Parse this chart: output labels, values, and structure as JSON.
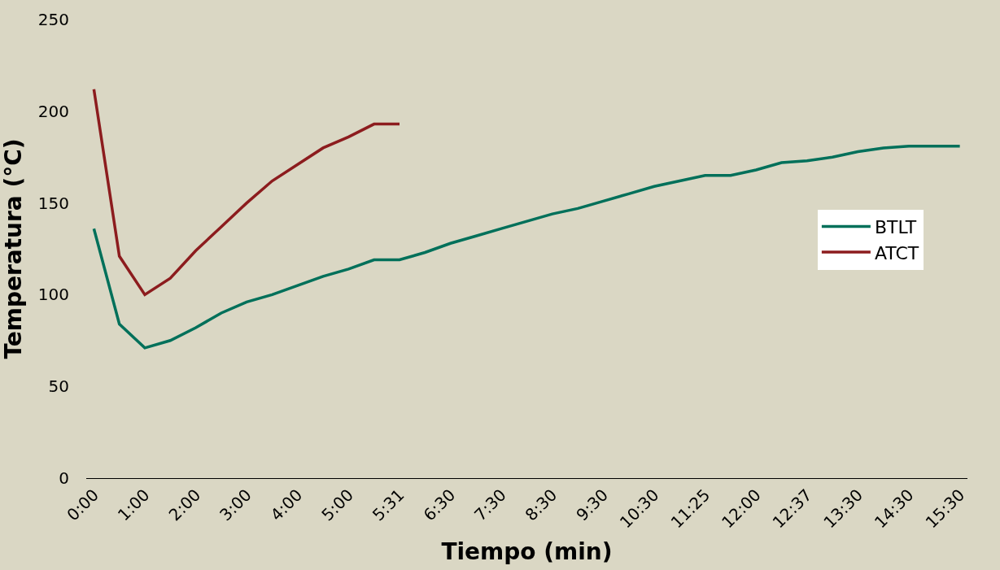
{
  "chart_data": {
    "type": "line",
    "xlabel": "Tiempo (min)",
    "ylabel": "Temperatura (°C)",
    "categories": [
      "0:00",
      null,
      "1:00",
      null,
      "2:00",
      null,
      "3:00",
      null,
      "4:00",
      null,
      "5:00",
      null,
      "5:31",
      null,
      "6:30",
      null,
      "7:30",
      null,
      "8:30",
      null,
      "9:30",
      null,
      "10:30",
      null,
      "11:25",
      null,
      "12:00",
      null,
      "12:37",
      null,
      "13:30",
      null,
      "14:30",
      null,
      "15:30"
    ],
    "ylim": [
      0,
      250
    ],
    "yticks": [
      0,
      50,
      100,
      150,
      200,
      250
    ],
    "grid": false,
    "legend": "right",
    "marker": "none",
    "line_style": "solid",
    "series": [
      {
        "name": "BTLT",
        "color": "#00705a",
        "values": [
          136,
          84,
          71,
          75,
          82,
          90,
          96,
          100,
          105,
          110,
          114,
          119,
          119,
          123,
          128,
          132,
          136,
          140,
          144,
          147,
          151,
          155,
          159,
          162,
          165,
          165,
          168,
          172,
          173,
          175,
          178,
          180,
          181,
          181,
          181
        ]
      },
      {
        "name": "ATCT",
        "color": "#8c1c1e",
        "values": [
          212,
          121,
          100,
          109,
          124,
          137,
          150,
          162,
          171,
          180,
          186,
          193,
          193,
          null,
          null,
          null,
          null,
          null,
          null,
          null,
          null,
          null,
          null,
          null,
          null,
          null,
          null,
          null,
          null,
          null,
          null,
          null,
          null,
          null,
          null
        ]
      }
    ]
  }
}
